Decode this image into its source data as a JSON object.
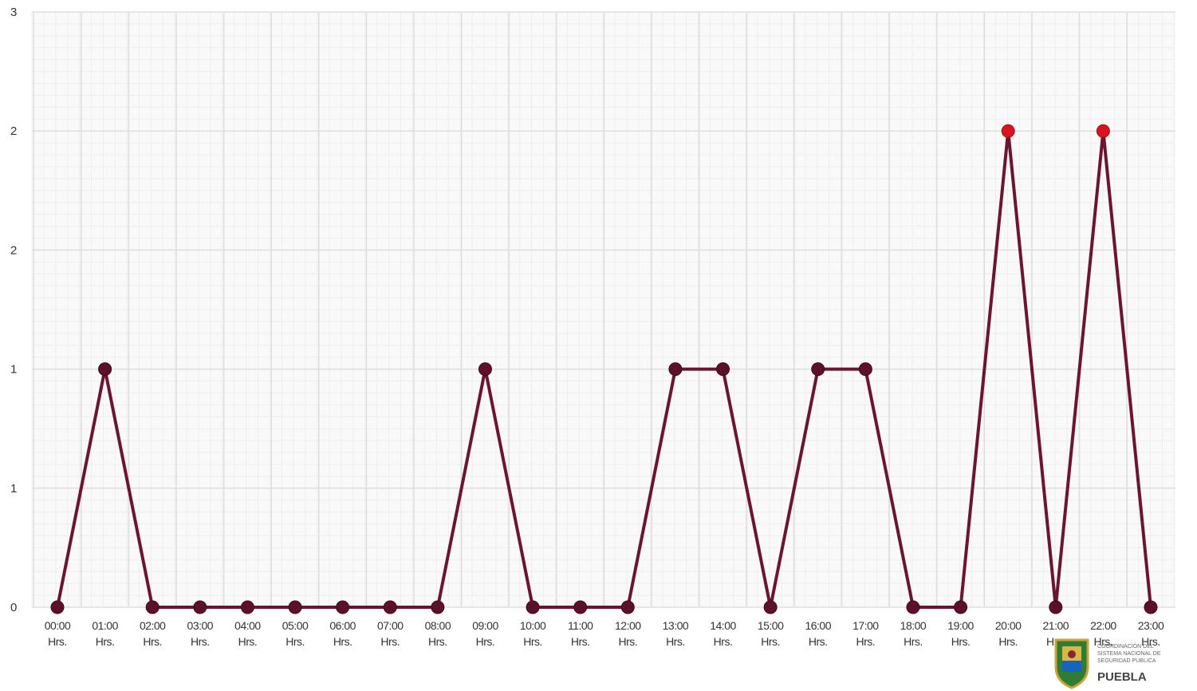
{
  "chart_data": {
    "type": "line",
    "categories": [
      "00:00 Hrs.",
      "01:00 Hrs.",
      "02:00 Hrs.",
      "03:00 Hrs.",
      "04:00 Hrs.",
      "05:00 Hrs.",
      "06:00 Hrs.",
      "07:00 Hrs.",
      "08:00 Hrs.",
      "09:00 Hrs.",
      "10:00 Hrs.",
      "11:00 Hrs.",
      "12:00 Hrs.",
      "13:00 Hrs.",
      "14:00 Hrs.",
      "15:00 Hrs.",
      "16:00 Hrs.",
      "17:00 Hrs.",
      "18:00 Hrs.",
      "19:00 Hrs.",
      "20:00 Hrs.",
      "21:00 Hrs.",
      "22:00 Hrs.",
      "23:00 Hrs."
    ],
    "x_labels": [
      [
        "00:00",
        "Hrs."
      ],
      [
        "01:00",
        "Hrs."
      ],
      [
        "02:00",
        "Hrs."
      ],
      [
        "03:00",
        "Hrs."
      ],
      [
        "04:00",
        "Hrs."
      ],
      [
        "05:00",
        "Hrs."
      ],
      [
        "06:00",
        "Hrs."
      ],
      [
        "07:00",
        "Hrs."
      ],
      [
        "08:00",
        "Hrs."
      ],
      [
        "09:00",
        "Hrs."
      ],
      [
        "10:00",
        "Hrs."
      ],
      [
        "11:00",
        "Hrs."
      ],
      [
        "12:00",
        "Hrs."
      ],
      [
        "13:00",
        "Hrs."
      ],
      [
        "14:00",
        "Hrs."
      ],
      [
        "15:00",
        "Hrs."
      ],
      [
        "16:00",
        "Hrs."
      ],
      [
        "17:00",
        "Hrs."
      ],
      [
        "18:00",
        "Hrs."
      ],
      [
        "19:00",
        "Hrs."
      ],
      [
        "20:00",
        "Hrs."
      ],
      [
        "21:00",
        "Hrs."
      ],
      [
        "22:00",
        "Hrs."
      ],
      [
        "23:00",
        "Hrs."
      ]
    ],
    "series": [
      {
        "values": [
          0,
          1,
          0,
          0,
          0,
          0,
          0,
          0,
          0,
          1,
          0,
          0,
          0,
          1,
          1,
          0,
          1,
          1,
          0,
          0,
          2,
          0,
          2,
          0
        ]
      }
    ],
    "highlight_indices": [
      20,
      22
    ],
    "ylim": [
      0,
      2.5
    ],
    "ytick_values": [
      0,
      0.5,
      1,
      1.5,
      2,
      2.5
    ],
    "ytick_labels": [
      "0",
      "1",
      "1",
      "2",
      "2",
      "3"
    ],
    "grid": true,
    "colors": {
      "line": "#6b1530",
      "marker": "#5c1029",
      "highlight": "#d8141c",
      "grid_major": "#dedede",
      "grid_minor": "#eeeeee"
    }
  },
  "logo": {
    "lines": [
      "COORDINACIÓN DEL",
      "SISTEMA NACIONAL DE",
      "SEGURIDAD PÚBLICA"
    ],
    "name": "PUEBLA"
  }
}
